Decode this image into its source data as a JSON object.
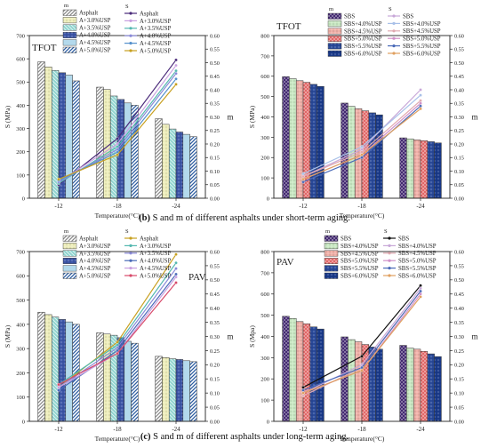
{
  "captions": [
    {
      "label": "(b)",
      "text": "S and m of different asphalts under short-term aging."
    },
    {
      "label": "(c)",
      "text": "S and m of different asphalts under long-term aging."
    }
  ],
  "chart_data": [
    {
      "type": "bar",
      "panel_label": "TFOT",
      "categories": [
        "-12",
        "-18",
        "-24"
      ],
      "xlabel": "Temperature(°C)",
      "ylabel": "S (MPa)",
      "y2label": "m",
      "ylim": [
        0,
        700
      ],
      "y2lim": [
        0,
        0.6
      ],
      "legend_bar_header": "m",
      "legend_line_header": "S",
      "bar_series": [
        {
          "name": "Asphalt",
          "pattern": "diag",
          "color": "#8a8a8a",
          "values": [
            587,
            478,
            342
          ]
        },
        {
          "name": "A+3.0%USP",
          "pattern": "dots",
          "color": "#eeeebb",
          "values": [
            565,
            468,
            318
          ]
        },
        {
          "name": "A+3.5%USP",
          "pattern": "hatch",
          "color": "#8fd4cf",
          "values": [
            550,
            440,
            298
          ]
        },
        {
          "name": "A+4.0%USP",
          "pattern": "dots",
          "color": "#3d56a8",
          "values": [
            540,
            425,
            285
          ]
        },
        {
          "name": "A+4.5%USP",
          "pattern": "solid",
          "color": "#b3d9ec",
          "values": [
            530,
            410,
            275
          ]
        },
        {
          "name": "A+5.0%USP",
          "pattern": "diag",
          "color": "#2a5ba0",
          "values": [
            505,
            400,
            265
          ]
        }
      ],
      "line_series": [
        {
          "name": "Asphalt",
          "color": "#4a2a7a",
          "values": [
            0.05,
            0.22,
            0.51
          ]
        },
        {
          "name": "A+3.0%USP",
          "color": "#c8a0e0",
          "values": [
            0.06,
            0.2,
            0.49
          ]
        },
        {
          "name": "A+3.5%USP",
          "color": "#55b8b0",
          "values": [
            0.055,
            0.19,
            0.47
          ]
        },
        {
          "name": "A+4.0%USP",
          "color": "#8a8ad8",
          "values": [
            0.06,
            0.18,
            0.46
          ]
        },
        {
          "name": "A+4.5%USP",
          "color": "#5590cc",
          "values": [
            0.065,
            0.17,
            0.44
          ]
        },
        {
          "name": "A+5.0%USP",
          "color": "#c8a020",
          "values": [
            0.07,
            0.16,
            0.42
          ]
        }
      ]
    },
    {
      "type": "bar",
      "panel_label": "TFOT",
      "categories": [
        "-12",
        "-18",
        "-24"
      ],
      "xlabel": "Temperature(°C)",
      "ylabel": "S (MPa)",
      "y2label": "m",
      "ylim": [
        0,
        800
      ],
      "y2lim": [
        0,
        0.6
      ],
      "legend_bar_header": "m",
      "legend_line_header": "S",
      "bar_series": [
        {
          "name": "SBS",
          "pattern": "cross",
          "color": "#3a1f6a",
          "values": [
            598,
            468,
            297
          ]
        },
        {
          "name": "SBS+4.0%USP",
          "pattern": "dots",
          "color": "#c9e8c3",
          "values": [
            588,
            452,
            292
          ]
        },
        {
          "name": "SBS+4.5%USP",
          "pattern": "dots",
          "color": "#f0b0a8",
          "values": [
            578,
            440,
            287
          ]
        },
        {
          "name": "SBS+5.0%USP",
          "pattern": "cross",
          "color": "#e06060",
          "values": [
            570,
            430,
            283
          ]
        },
        {
          "name": "SBS+5.5%USP",
          "pattern": "dots",
          "color": "#2a4a9a",
          "values": [
            560,
            420,
            278
          ]
        },
        {
          "name": "SBS+6.0%USP",
          "pattern": "dots",
          "color": "#1a3a8a",
          "values": [
            550,
            410,
            272
          ]
        }
      ],
      "line_series": [
        {
          "name": "SBS",
          "color": "#c8a8d8",
          "values": [
            0.08,
            0.18,
            0.4
          ]
        },
        {
          "name": "SBS+4.0%USP",
          "color": "#a8c0e8",
          "values": [
            0.09,
            0.19,
            0.38
          ]
        },
        {
          "name": "SBS+4.5%USP",
          "color": "#e0a8b0",
          "values": [
            0.08,
            0.17,
            0.36
          ]
        },
        {
          "name": "SBS+5.0%USP",
          "color": "#d090c8",
          "values": [
            0.07,
            0.16,
            0.35
          ]
        },
        {
          "name": "SBS+5.5%USP",
          "color": "#4a6ab8",
          "values": [
            0.06,
            0.15,
            0.34
          ]
        },
        {
          "name": "SBS+6.0%USP",
          "color": "#e0a060",
          "values": [
            0.07,
            0.16,
            0.33
          ]
        }
      ]
    },
    {
      "type": "bar",
      "panel_label": "PAV",
      "categories": [
        "-12",
        "-18",
        "-24"
      ],
      "xlabel": "Temperature(°C)",
      "ylabel": "S (MPa)",
      "y2label": "m",
      "ylim": [
        0,
        700
      ],
      "y2lim": [
        0,
        0.6
      ],
      "legend_bar_header": "m",
      "legend_line_header": "S",
      "bar_series": [
        {
          "name": "Asphalt",
          "pattern": "diag",
          "color": "#8a8a8a",
          "values": [
            450,
            365,
            268
          ]
        },
        {
          "name": "A+3.0%USP",
          "pattern": "dots",
          "color": "#eeeebb",
          "values": [
            440,
            360,
            263
          ]
        },
        {
          "name": "A+3.5%USP",
          "pattern": "hatch",
          "color": "#8fd4cf",
          "values": [
            430,
            355,
            258
          ]
        },
        {
          "name": "A+4.0%USP",
          "pattern": "dots",
          "color": "#3d56a8",
          "values": [
            420,
            345,
            255
          ]
        },
        {
          "name": "A+4.5%USP",
          "pattern": "solid",
          "color": "#b3d9ec",
          "values": [
            410,
            330,
            250
          ]
        },
        {
          "name": "A+5.0%USP",
          "pattern": "diag",
          "color": "#2a5ba0",
          "values": [
            400,
            322,
            246
          ]
        }
      ],
      "line_series": [
        {
          "name": "Asphalt",
          "color": "#c8a020",
          "values": [
            0.12,
            0.28,
            0.59
          ]
        },
        {
          "name": "A+3.0%USP",
          "color": "#55b8b0",
          "values": [
            0.13,
            0.27,
            0.56
          ]
        },
        {
          "name": "A+3.5%USP",
          "color": "#8a8ad8",
          "values": [
            0.12,
            0.26,
            0.54
          ]
        },
        {
          "name": "A+4.0%USP",
          "color": "#4a6ab8",
          "values": [
            0.11,
            0.25,
            0.52
          ]
        },
        {
          "name": "A+4.5%USP",
          "color": "#c8a0e0",
          "values": [
            0.12,
            0.24,
            0.51
          ]
        },
        {
          "name": "A+5.0%USP",
          "color": "#d84a6a",
          "values": [
            0.13,
            0.24,
            0.49
          ]
        }
      ]
    },
    {
      "type": "bar",
      "panel_label": "PAV",
      "categories": [
        "-12",
        "-18",
        "-24"
      ],
      "xlabel": "Temperature(°C)",
      "ylabel": "S (Mpa)",
      "y2label": "m",
      "ylim": [
        0,
        800
      ],
      "y2lim": [
        0,
        0.6
      ],
      "legend_bar_header": "m",
      "legend_line_header": "S",
      "bar_series": [
        {
          "name": "SBS",
          "pattern": "cross",
          "color": "#3a1f6a",
          "values": [
            495,
            398,
            358
          ]
        },
        {
          "name": "SBS+4.0%USP",
          "pattern": "dots",
          "color": "#c9e8c3",
          "values": [
            485,
            385,
            345
          ]
        },
        {
          "name": "SBS+4.5%USP",
          "pattern": "dots",
          "color": "#f0b0a8",
          "values": [
            470,
            375,
            340
          ]
        },
        {
          "name": "SBS+5.0%USP",
          "pattern": "cross",
          "color": "#e06060",
          "values": [
            460,
            362,
            330
          ]
        },
        {
          "name": "SBS+5.5%USP",
          "pattern": "dots",
          "color": "#2a4a9a",
          "values": [
            445,
            350,
            318
          ]
        },
        {
          "name": "SBS+6.0%USP",
          "pattern": "dots",
          "color": "#1a3a8a",
          "values": [
            435,
            340,
            305
          ]
        }
      ],
      "line_series": [
        {
          "name": "SBS",
          "color": "#111111",
          "values": [
            0.12,
            0.23,
            0.48
          ]
        },
        {
          "name": "SBS+4.0%USP",
          "color": "#c8a8d8",
          "values": [
            0.1,
            0.2,
            0.47
          ]
        },
        {
          "name": "SBS+4.5%USP",
          "color": "#e0a8b0",
          "values": [
            0.09,
            0.19,
            0.46
          ]
        },
        {
          "name": "SBS+5.0%USP",
          "color": "#d090c8",
          "values": [
            0.1,
            0.18,
            0.45
          ]
        },
        {
          "name": "SBS+5.5%USP",
          "color": "#4a6ab8",
          "values": [
            0.11,
            0.19,
            0.46
          ]
        },
        {
          "name": "SBS+6.0%USP",
          "color": "#e0a060",
          "values": [
            0.1,
            0.18,
            0.44
          ]
        }
      ]
    }
  ]
}
